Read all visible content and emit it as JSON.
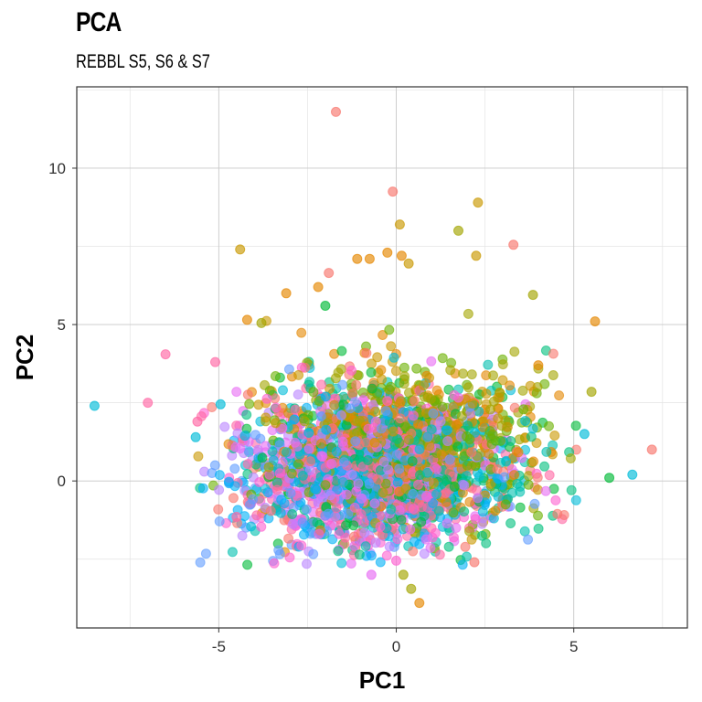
{
  "chart_data": {
    "type": "scatter",
    "title": "PCA",
    "subtitle": "REBBL S5, S6 & S7",
    "xlabel": "PC1",
    "ylabel": "PC2",
    "xlim": [
      -9,
      8.2
    ],
    "ylim": [
      -4.7,
      12.6
    ],
    "x_ticks": [
      -5,
      0,
      5
    ],
    "x_tick_labels": [
      "-5",
      "0",
      "5"
    ],
    "y_ticks": [
      0,
      5,
      10
    ],
    "y_tick_labels": [
      "0",
      "5",
      "10"
    ],
    "grid": true,
    "legend": "none",
    "palette": [
      "#F8766D",
      "#E58700",
      "#C99800",
      "#A3A500",
      "#6BB100",
      "#00BA38",
      "#00BF7D",
      "#00C0AF",
      "#00BCD8",
      "#00B0F6",
      "#619CFF",
      "#B983FF",
      "#E76BF3",
      "#FD61D1",
      "#FF67A4"
    ],
    "cloud": {
      "center": [
        0,
        0.5
      ],
      "sd": [
        1.9,
        1.25
      ],
      "shift_by_series": {
        "warm_up": 1.4,
        "cool_left": -1.2
      }
    },
    "notable_points": [
      {
        "x": -1.7,
        "y": 11.8,
        "color": "#F8766D"
      },
      {
        "x": -0.1,
        "y": 9.25,
        "color": "#F8766D"
      },
      {
        "x": 2.3,
        "y": 8.9,
        "color": "#C99800"
      },
      {
        "x": 0.1,
        "y": 8.2,
        "color": "#C99800"
      },
      {
        "x": 1.75,
        "y": 8.0,
        "color": "#A3A500"
      },
      {
        "x": 3.3,
        "y": 7.55,
        "color": "#F8766D"
      },
      {
        "x": -4.4,
        "y": 7.4,
        "color": "#C99800"
      },
      {
        "x": 2.25,
        "y": 7.2,
        "color": "#C99800"
      },
      {
        "x": 0.15,
        "y": 7.2,
        "color": "#E58700"
      },
      {
        "x": -0.25,
        "y": 7.3,
        "color": "#E58700"
      },
      {
        "x": -0.75,
        "y": 7.1,
        "color": "#E58700"
      },
      {
        "x": -1.1,
        "y": 7.1,
        "color": "#E58700"
      },
      {
        "x": 0.35,
        "y": 6.95,
        "color": "#C99800"
      },
      {
        "x": -1.9,
        "y": 6.65,
        "color": "#F8766D"
      },
      {
        "x": 3.85,
        "y": 5.95,
        "color": "#A3A500"
      },
      {
        "x": -3.1,
        "y": 6.0,
        "color": "#E58700"
      },
      {
        "x": -2.2,
        "y": 6.2,
        "color": "#E58700"
      },
      {
        "x": 5.6,
        "y": 5.1,
        "color": "#E58700"
      },
      {
        "x": -4.2,
        "y": 5.15,
        "color": "#E58700"
      },
      {
        "x": -3.8,
        "y": 5.05,
        "color": "#A3A500"
      },
      {
        "x": -2.0,
        "y": 5.6,
        "color": "#00BA38"
      },
      {
        "x": -6.5,
        "y": 4.05,
        "color": "#FF67A4"
      },
      {
        "x": -5.1,
        "y": 3.8,
        "color": "#FF67A4"
      },
      {
        "x": -7.0,
        "y": 2.5,
        "color": "#FF67A4"
      },
      {
        "x": -8.5,
        "y": 2.4,
        "color": "#00BCD8"
      },
      {
        "x": -5.6,
        "y": 1.9,
        "color": "#FF67A4"
      },
      {
        "x": -5.65,
        "y": 1.4,
        "color": "#00BCD8"
      },
      {
        "x": -4.95,
        "y": 2.45,
        "color": "#00BCD8"
      },
      {
        "x": 7.2,
        "y": 1.0,
        "color": "#F8766D"
      },
      {
        "x": 6.65,
        "y": 0.2,
        "color": "#00BCD8"
      },
      {
        "x": 6.0,
        "y": 0.1,
        "color": "#00BA38"
      },
      {
        "x": 5.3,
        "y": 1.5,
        "color": "#00BCD8"
      },
      {
        "x": 5.5,
        "y": 2.85,
        "color": "#A3A500"
      },
      {
        "x": 0.2,
        "y": -3.0,
        "color": "#A3A500"
      },
      {
        "x": 0.42,
        "y": -3.45,
        "color": "#A3A500"
      },
      {
        "x": 0.65,
        "y": -3.9,
        "color": "#E58700"
      },
      {
        "x": -0.7,
        "y": -3.0,
        "color": "#E76BF3"
      },
      {
        "x": 0.0,
        "y": -2.55,
        "color": "#FD61D1"
      },
      {
        "x": 2.2,
        "y": -2.6,
        "color": "#F8766D"
      },
      {
        "x": -4.5,
        "y": -1.15,
        "color": "#FF67A4"
      },
      {
        "x": 4.0,
        "y": 3.7,
        "color": "#E58700"
      }
    ]
  }
}
